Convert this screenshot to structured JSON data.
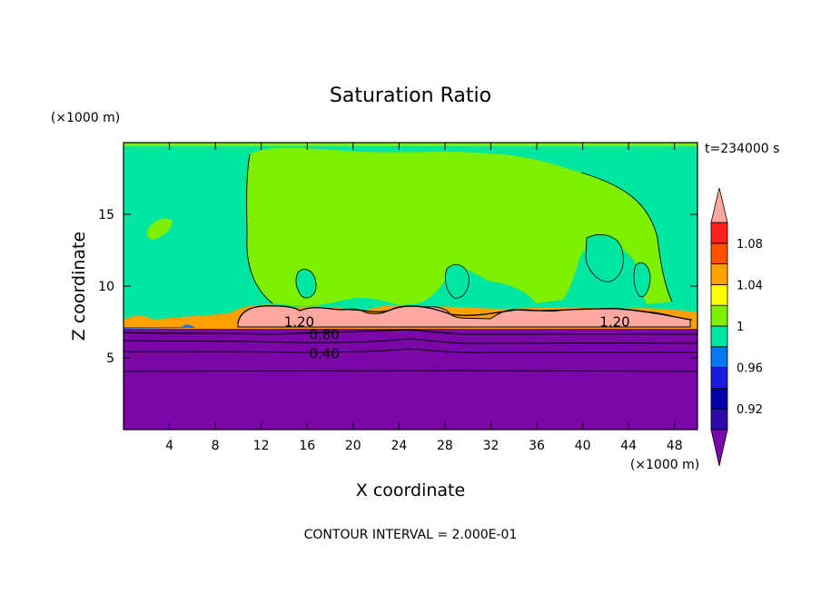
{
  "chart_data": {
    "type": "heatmap",
    "title": "Saturation Ratio",
    "xlabel": "X coordinate",
    "ylabel": "Z coordinate",
    "x_unit": "(×1000 m)",
    "y_unit": "(×1000 m)",
    "xlim": [
      0,
      50
    ],
    "ylim": [
      0,
      20
    ],
    "x_ticks": [
      4,
      8,
      12,
      16,
      20,
      24,
      28,
      32,
      36,
      40,
      44,
      48
    ],
    "y_ticks": [
      5,
      10,
      15
    ],
    "time_label": "t=234000 s",
    "footer": "CONTOUR INTERVAL = 2.000E-01",
    "contour_labels": [
      {
        "text": "1.20",
        "x": 15.3,
        "y": 7.5
      },
      {
        "text": "0.80",
        "x": 17.5,
        "y": 6.6
      },
      {
        "text": "0.40",
        "x": 17.5,
        "y": 5.3
      },
      {
        "text": "1.20",
        "x": 42.8,
        "y": 7.5
      }
    ],
    "colorbar": {
      "levels": [
        0.9,
        0.92,
        0.94,
        0.96,
        0.98,
        1.0,
        1.02,
        1.04,
        1.06,
        1.08,
        1.1
      ],
      "tick_labels": [
        "0.92",
        "0.96",
        "1",
        "1.04",
        "1.08"
      ],
      "colors": [
        "#2b0aa8",
        "#0000a8",
        "#1a1ae0",
        "#0a78f0",
        "#00e6a0",
        "#7cf000",
        "#ffff00",
        "#ffa000",
        "#ff5000",
        "#ff2020"
      ],
      "under_color": "#7b07a9",
      "over_color": "#ffa8a0"
    }
  }
}
